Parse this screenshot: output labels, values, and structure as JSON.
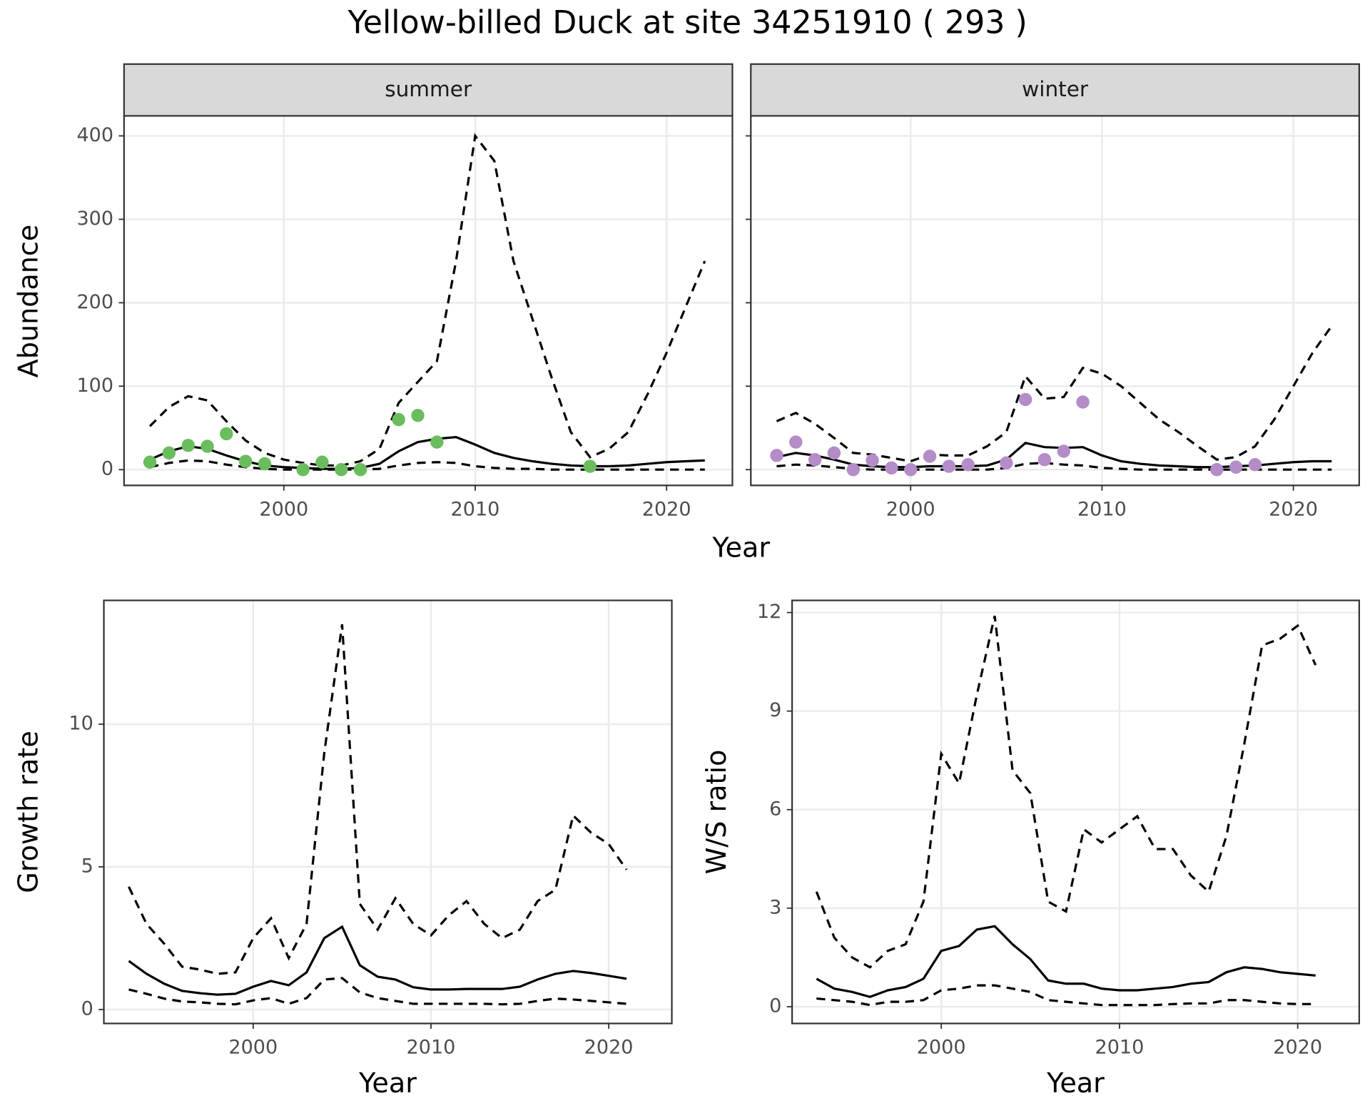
{
  "title": "Yellow-billed Duck at site 34251910 ( 293 )",
  "chart_data": [
    {
      "type": "line",
      "xlabel": "Year",
      "ylabel": "Abundance",
      "x": [
        1993,
        1994,
        1995,
        1996,
        1997,
        1998,
        1999,
        2000,
        2001,
        2002,
        2003,
        2004,
        2005,
        2006,
        2007,
        2008,
        2009,
        2010,
        2011,
        2012,
        2013,
        2014,
        2015,
        2016,
        2017,
        2018,
        2019,
        2020,
        2021,
        2022
      ],
      "xlim": [
        1991.65,
        2023.44
      ],
      "xticks": [
        2000,
        2010,
        2020
      ],
      "ylim": [
        -18.9,
        424
      ],
      "yticks": [
        0,
        100,
        200,
        300,
        400
      ],
      "grid": true,
      "facets": [
        {
          "strip": "summer",
          "series": [
            {
              "style": "dashed",
              "color": "#000000",
              "values": [
                52,
                75,
                88,
                83,
                58,
                35,
                20,
                12,
                8,
                5,
                5,
                10,
                25,
                80,
                105,
                130,
                250,
                400,
                370,
                250,
                180,
                110,
                45,
                15,
                25,
                45,
                90,
                140,
                195,
                250
              ]
            },
            {
              "style": "solid",
              "color": "#000000",
              "values": [
                12,
                22,
                28,
                25,
                17,
                10,
                5,
                3,
                2,
                1,
                1,
                2,
                7,
                22,
                33,
                37,
                39,
                30,
                20,
                14,
                10,
                7,
                5,
                4,
                4,
                5,
                7,
                9,
                10,
                11
              ]
            },
            {
              "style": "dashed",
              "color": "#000000",
              "values": [
                3,
                8,
                11,
                10,
                6,
                3,
                1,
                0,
                0,
                0,
                0,
                0,
                1,
                5,
                8,
                9,
                8,
                4,
                2,
                1,
                1,
                0,
                0,
                0,
                0,
                0,
                0,
                0,
                0,
                0
              ]
            },
            {
              "style": "points",
              "color": "#6abd5d",
              "values": [
                9,
                20,
                29,
                28,
                43,
                10,
                7,
                null,
                0,
                9,
                0,
                0,
                null,
                60,
                65,
                33,
                null,
                null,
                null,
                null,
                null,
                null,
                null,
                4,
                null,
                null,
                null,
                null,
                null,
                null
              ]
            }
          ]
        },
        {
          "strip": "winter",
          "series": [
            {
              "style": "dashed",
              "color": "#000000",
              "values": [
                58,
                68,
                55,
                38,
                20,
                18,
                14,
                10,
                18,
                17,
                17,
                28,
                45,
                112,
                85,
                87,
                122,
                115,
                100,
                80,
                60,
                45,
                28,
                12,
                15,
                28,
                60,
                100,
                140,
                172
              ]
            },
            {
              "style": "solid",
              "color": "#000000",
              "values": [
                15,
                20,
                17,
                12,
                6,
                4,
                3,
                3,
                4,
                4,
                4,
                5,
                12,
                32,
                27,
                26,
                27,
                17,
                10,
                7,
                5,
                4,
                3,
                3,
                4,
                5,
                7,
                9,
                10,
                10
              ]
            },
            {
              "style": "dashed",
              "color": "#000000",
              "values": [
                4,
                6,
                5,
                3,
                1,
                0,
                0,
                0,
                0,
                0,
                0,
                0,
                2,
                7,
                8,
                6,
                5,
                2,
                1,
                0,
                0,
                0,
                0,
                0,
                0,
                0,
                0,
                0,
                0,
                0
              ]
            },
            {
              "style": "points",
              "color": "#b48cc8",
              "values": [
                17,
                33,
                12,
                20,
                0,
                11,
                2,
                0,
                16,
                4,
                6,
                null,
                8,
                84,
                12,
                22,
                81,
                null,
                null,
                null,
                null,
                null,
                null,
                0,
                3,
                6,
                null,
                null,
                null,
                null
              ]
            }
          ]
        }
      ]
    },
    {
      "type": "line",
      "xlabel": "Year",
      "ylabel": "Growth rate",
      "x": [
        1993,
        1994,
        1995,
        1996,
        1997,
        1998,
        1999,
        2000,
        2001,
        2002,
        2003,
        2004,
        2005,
        2006,
        2007,
        2008,
        2009,
        2010,
        2011,
        2012,
        2013,
        2014,
        2015,
        2016,
        2017,
        2018,
        2019,
        2020,
        2021
      ],
      "xlim": [
        1991.6,
        2023.55
      ],
      "xticks": [
        2000,
        2010,
        2020
      ],
      "ylim": [
        -0.49,
        14.34
      ],
      "yticks": [
        0,
        5,
        10
      ],
      "grid": true,
      "series": [
        {
          "style": "dashed",
          "color": "#000000",
          "values": [
            4.3,
            3.0,
            2.3,
            1.5,
            1.4,
            1.25,
            1.3,
            2.5,
            3.2,
            1.8,
            3.0,
            9.0,
            13.5,
            3.7,
            2.8,
            3.9,
            3.0,
            2.6,
            3.3,
            3.8,
            3.0,
            2.5,
            2.8,
            3.8,
            4.2,
            6.8,
            6.2,
            5.8,
            4.9
          ]
        },
        {
          "style": "solid",
          "color": "#000000",
          "values": [
            1.7,
            1.25,
            0.9,
            0.65,
            0.57,
            0.52,
            0.55,
            0.8,
            1.0,
            0.85,
            1.3,
            2.5,
            2.9,
            1.55,
            1.15,
            1.05,
            0.78,
            0.7,
            0.7,
            0.72,
            0.72,
            0.72,
            0.8,
            1.05,
            1.25,
            1.35,
            1.28,
            1.18,
            1.08
          ]
        },
        {
          "style": "dashed",
          "color": "#000000",
          "values": [
            0.7,
            0.55,
            0.38,
            0.28,
            0.25,
            0.2,
            0.18,
            0.32,
            0.4,
            0.2,
            0.4,
            1.05,
            1.1,
            0.6,
            0.4,
            0.3,
            0.2,
            0.2,
            0.2,
            0.2,
            0.2,
            0.18,
            0.2,
            0.3,
            0.38,
            0.35,
            0.3,
            0.25,
            0.2
          ]
        }
      ]
    },
    {
      "type": "line",
      "xlabel": "Year",
      "ylabel": "W/S ratio",
      "x": [
        1993,
        1994,
        1995,
        1996,
        1997,
        1998,
        1999,
        2000,
        2001,
        2002,
        2003,
        2004,
        2005,
        2006,
        2007,
        2008,
        2009,
        2010,
        2011,
        2012,
        2013,
        2014,
        2015,
        2016,
        2017,
        2018,
        2019,
        2020,
        2021
      ],
      "xlim": [
        1991.63,
        2023.45
      ],
      "xticks": [
        2000,
        2010,
        2020
      ],
      "ylim": [
        -0.51,
        12.37
      ],
      "yticks": [
        0,
        3,
        6,
        9,
        12
      ],
      "grid": true,
      "series": [
        {
          "style": "dashed",
          "color": "#000000",
          "values": [
            3.5,
            2.1,
            1.5,
            1.2,
            1.7,
            1.9,
            3.2,
            7.7,
            6.8,
            9.5,
            11.9,
            7.2,
            6.5,
            3.2,
            2.9,
            5.4,
            5.0,
            5.4,
            5.8,
            4.8,
            4.8,
            4.0,
            3.5,
            5.2,
            8.0,
            11.0,
            11.2,
            11.6,
            10.4
          ]
        },
        {
          "style": "solid",
          "color": "#000000",
          "values": [
            0.85,
            0.55,
            0.45,
            0.3,
            0.5,
            0.6,
            0.85,
            1.7,
            1.85,
            2.35,
            2.45,
            1.9,
            1.45,
            0.8,
            0.7,
            0.7,
            0.55,
            0.5,
            0.5,
            0.55,
            0.6,
            0.7,
            0.75,
            1.05,
            1.2,
            1.15,
            1.05,
            1.0,
            0.95
          ]
        },
        {
          "style": "dashed",
          "color": "#000000",
          "values": [
            0.25,
            0.2,
            0.15,
            0.05,
            0.15,
            0.15,
            0.2,
            0.5,
            0.55,
            0.65,
            0.65,
            0.55,
            0.45,
            0.2,
            0.15,
            0.1,
            0.05,
            0.05,
            0.05,
            0.05,
            0.08,
            0.1,
            0.1,
            0.2,
            0.2,
            0.15,
            0.1,
            0.08,
            0.08
          ]
        }
      ]
    }
  ]
}
